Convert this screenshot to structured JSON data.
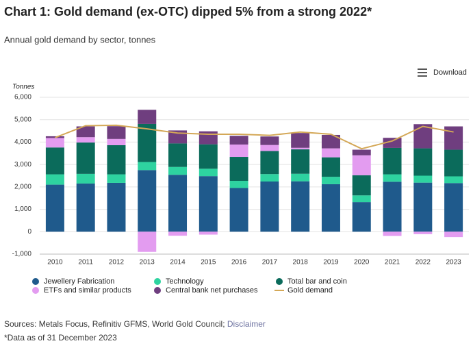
{
  "chart_data": {
    "type": "bar",
    "stacked": true,
    "title": "Chart 1: Gold demand (ex-OTC) dipped 5% from a strong 2022*",
    "subtitle": "Annual gold demand by sector, tonnes",
    "ylabel": "Tonnes",
    "categories": [
      "2010",
      "2011",
      "2012",
      "2013",
      "2014",
      "2015",
      "2016",
      "2017",
      "2018",
      "2019",
      "2020",
      "2021",
      "2022",
      "2023"
    ],
    "series": [
      {
        "name": "Jewellery Fabrication",
        "color": "#1f5a8c",
        "values": [
          2100,
          2150,
          2180,
          2750,
          2540,
          2480,
          1950,
          2240,
          2250,
          2120,
          1320,
          2230,
          2190,
          2170
        ]
      },
      {
        "name": "Technology",
        "color": "#2ed3a0",
        "values": [
          460,
          430,
          380,
          360,
          350,
          330,
          320,
          330,
          335,
          330,
          300,
          330,
          310,
          300
        ]
      },
      {
        "name": "Total bar and coin",
        "color": "#0b6b5b",
        "values": [
          1200,
          1400,
          1300,
          1700,
          1050,
          1090,
          1070,
          1030,
          1090,
          870,
          900,
          1180,
          1220,
          1190
        ]
      },
      {
        "name": "ETFs and similar products",
        "color": "#e39cf0",
        "values": [
          420,
          240,
          280,
          -900,
          -180,
          -130,
          550,
          270,
          70,
          400,
          890,
          -190,
          -110,
          -240
        ]
      },
      {
        "name": "Central bank net purchases",
        "color": "#6f3e7f",
        "values": [
          80,
          480,
          570,
          630,
          580,
          580,
          390,
          380,
          660,
          600,
          250,
          450,
          1080,
          1040
        ]
      },
      {
        "name": "Gold demand",
        "type": "line",
        "color": "#d4a857",
        "values": [
          4200,
          4730,
          4750,
          4590,
          4400,
          4350,
          4350,
          4300,
          4450,
          4350,
          3700,
          4050,
          4700,
          4450
        ]
      }
    ],
    "ylim": [
      -1000,
      6000
    ],
    "yticks": [
      {
        "value": -1000,
        "label": "-1,000"
      },
      0,
      {
        "value": 1000,
        "label": "1,000"
      },
      {
        "value": 2000,
        "label": "2,000"
      },
      {
        "value": 3000,
        "label": "3,000"
      },
      {
        "value": 4000,
        "label": "4,000"
      },
      {
        "value": 5000,
        "label": "5,000"
      },
      {
        "value": 6000,
        "label": "6,000"
      }
    ],
    "grid": true
  },
  "download": "Download",
  "sources": "Sources: Metals Focus, Refinitiv GFMS, World Gold Council;",
  "disclaimer": "Disclaimer",
  "footnote": "*Data as of 31 December 2023"
}
